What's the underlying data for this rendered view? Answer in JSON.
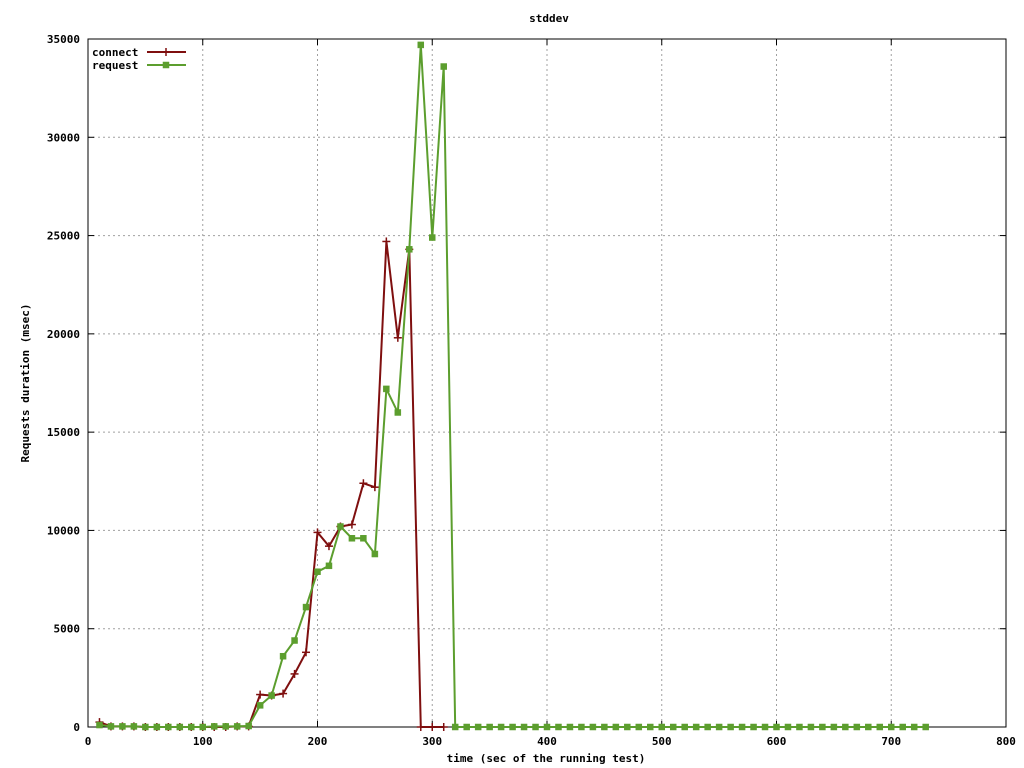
{
  "chart_data": {
    "type": "line",
    "title": "stddev",
    "xlabel": "time (sec of the running test)",
    "ylabel": "Requests duration (msec)",
    "xlim": [
      0,
      800
    ],
    "ylim": [
      0,
      35000
    ],
    "x_ticks": [
      0,
      100,
      200,
      300,
      400,
      500,
      600,
      700,
      800
    ],
    "y_ticks": [
      0,
      5000,
      10000,
      15000,
      20000,
      25000,
      30000,
      35000
    ],
    "grid": true,
    "legend_position": "top-left",
    "series": [
      {
        "name": "connect",
        "color": "#7f0f0f",
        "marker": "plus",
        "points": [
          [
            10,
            250
          ],
          [
            20,
            30
          ],
          [
            30,
            30
          ],
          [
            40,
            30
          ],
          [
            50,
            0
          ],
          [
            60,
            0
          ],
          [
            70,
            0
          ],
          [
            80,
            0
          ],
          [
            90,
            0
          ],
          [
            100,
            0
          ],
          [
            110,
            0
          ],
          [
            120,
            0
          ],
          [
            130,
            30
          ],
          [
            140,
            30
          ],
          [
            150,
            1650
          ],
          [
            160,
            1600
          ],
          [
            170,
            1700
          ],
          [
            180,
            2700
          ],
          [
            190,
            3800
          ],
          [
            200,
            9900
          ],
          [
            210,
            9200
          ],
          [
            220,
            10200
          ],
          [
            230,
            10300
          ],
          [
            240,
            12400
          ],
          [
            250,
            12200
          ],
          [
            260,
            24700
          ],
          [
            270,
            19800
          ],
          [
            280,
            24300
          ],
          [
            290,
            0
          ],
          [
            300,
            0
          ],
          [
            310,
            0
          ]
        ]
      },
      {
        "name": "request",
        "color": "#5c9e2e",
        "marker": "square",
        "points": [
          [
            10,
            100
          ],
          [
            20,
            30
          ],
          [
            30,
            30
          ],
          [
            40,
            30
          ],
          [
            50,
            0
          ],
          [
            60,
            0
          ],
          [
            70,
            0
          ],
          [
            80,
            0
          ],
          [
            90,
            0
          ],
          [
            100,
            0
          ],
          [
            110,
            30
          ],
          [
            120,
            30
          ],
          [
            130,
            30
          ],
          [
            140,
            50
          ],
          [
            150,
            1100
          ],
          [
            160,
            1600
          ],
          [
            170,
            3600
          ],
          [
            180,
            4400
          ],
          [
            190,
            6100
          ],
          [
            200,
            7900
          ],
          [
            210,
            8200
          ],
          [
            220,
            10200
          ],
          [
            230,
            9600
          ],
          [
            240,
            9600
          ],
          [
            250,
            8800
          ],
          [
            260,
            17200
          ],
          [
            270,
            16000
          ],
          [
            280,
            24300
          ],
          [
            290,
            34700
          ],
          [
            300,
            24900
          ],
          [
            310,
            33600
          ],
          [
            320,
            0
          ],
          [
            330,
            0
          ],
          [
            340,
            0
          ],
          [
            350,
            0
          ],
          [
            360,
            0
          ],
          [
            370,
            0
          ],
          [
            380,
            0
          ],
          [
            390,
            0
          ],
          [
            400,
            0
          ],
          [
            410,
            0
          ],
          [
            420,
            0
          ],
          [
            430,
            0
          ],
          [
            440,
            0
          ],
          [
            450,
            0
          ],
          [
            460,
            0
          ],
          [
            470,
            0
          ],
          [
            480,
            0
          ],
          [
            490,
            0
          ],
          [
            500,
            0
          ],
          [
            510,
            0
          ],
          [
            520,
            0
          ],
          [
            530,
            0
          ],
          [
            540,
            0
          ],
          [
            550,
            0
          ],
          [
            560,
            0
          ],
          [
            570,
            0
          ],
          [
            580,
            0
          ],
          [
            590,
            0
          ],
          [
            600,
            0
          ],
          [
            610,
            0
          ],
          [
            620,
            0
          ],
          [
            630,
            0
          ],
          [
            640,
            0
          ],
          [
            650,
            0
          ],
          [
            660,
            0
          ],
          [
            670,
            0
          ],
          [
            680,
            0
          ],
          [
            690,
            0
          ],
          [
            700,
            0
          ],
          [
            710,
            0
          ],
          [
            720,
            0
          ],
          [
            730,
            0
          ]
        ]
      }
    ]
  }
}
